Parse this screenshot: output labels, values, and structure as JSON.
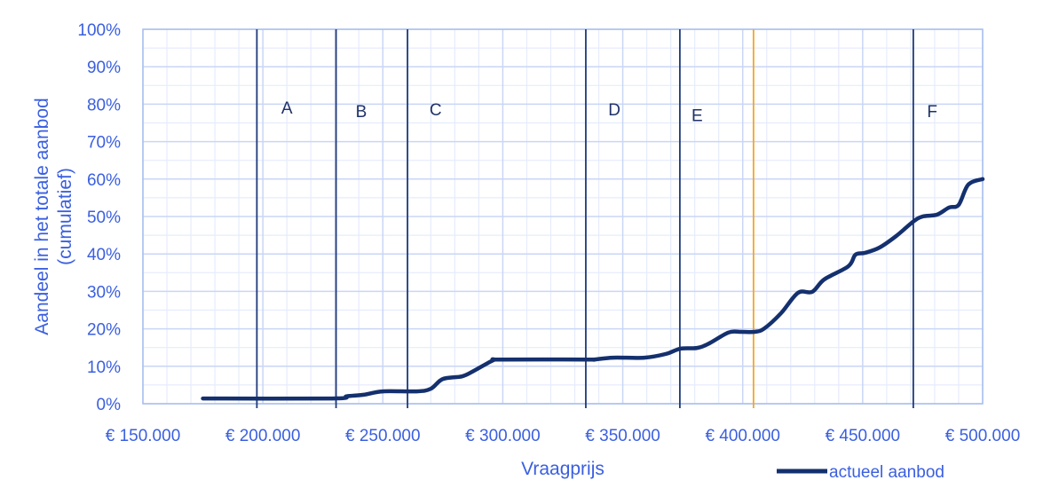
{
  "chart_data": {
    "type": "line",
    "title": "",
    "xlabel": "Vraagprijs",
    "ylabel": "Aandeel in het totale aanbod (cumulatief)",
    "ylabel_lines": [
      "Aandeel in het totale aanbod",
      "(cumulatief)"
    ],
    "xlim": [
      150000,
      500000
    ],
    "ylim": [
      0,
      100
    ],
    "x_ticks": [
      150000,
      200000,
      250000,
      300000,
      350000,
      400000,
      450000,
      500000
    ],
    "x_tick_labels": [
      "€ 150.000",
      "€ 200.000",
      "€ 250.000",
      "€ 300.000",
      "€ 350.000",
      "€ 400.000",
      "€ 450.000",
      "€ 500.000"
    ],
    "y_ticks": [
      0,
      10,
      20,
      30,
      40,
      50,
      60,
      70,
      80,
      90,
      100
    ],
    "y_tick_labels": [
      "0%",
      "10%",
      "20%",
      "30%",
      "40%",
      "50%",
      "60%",
      "70%",
      "80%",
      "90%",
      "100%"
    ],
    "grid": {
      "major_x_step": 50000,
      "minor_x_step": 10000,
      "major_y_step": 10,
      "minor_y_step": 5
    },
    "legend": {
      "position": "bottom-right",
      "entries": [
        "actueel aanbod"
      ]
    },
    "series": [
      {
        "name": "actueel aanbod",
        "color": "#14306e",
        "x": [
          175000,
          229000,
          235000,
          242000,
          250000,
          264000,
          270000,
          275000,
          283000,
          288000,
          296000,
          299000,
          335000,
          338000,
          346000,
          359000,
          368000,
          374000,
          381000,
          386000,
          394000,
          399000,
          405000,
          409000,
          416000,
          423000,
          429000,
          434000,
          444000,
          447000,
          451000,
          457000,
          464000,
          471000,
          475000,
          481000,
          486000,
          490000,
          494000,
          500000
        ],
        "values": [
          1.4,
          1.4,
          2.0,
          2.4,
          3.3,
          3.3,
          4.0,
          6.6,
          7.3,
          8.8,
          11.6,
          11.8,
          11.8,
          11.8,
          12.3,
          12.3,
          13.3,
          14.7,
          14.9,
          16.1,
          19.0,
          19.2,
          19.2,
          20.1,
          24.2,
          29.6,
          29.9,
          33.2,
          36.7,
          39.8,
          40.3,
          41.7,
          44.8,
          48.6,
          50.0,
          50.5,
          52.4,
          53.1,
          58.5,
          60.0
        ]
      }
    ],
    "annotations": {
      "vertical_lines": [
        {
          "x": 197500,
          "color": "#1f3a7a"
        },
        {
          "x": 230500,
          "color": "#1f3a7a"
        },
        {
          "x": 260300,
          "color": "#1f3a7a"
        },
        {
          "x": 334600,
          "color": "#1f3a7a"
        },
        {
          "x": 373800,
          "color": "#1f3a7a"
        },
        {
          "x": 404500,
          "color": "#f5a623"
        },
        {
          "x": 471100,
          "color": "#1f3a7a"
        }
      ],
      "zone_labels": [
        {
          "text": "A",
          "x": 210000,
          "y": 77.5
        },
        {
          "text": "B",
          "x": 241000,
          "y": 76.5
        },
        {
          "text": "C",
          "x": 272000,
          "y": 77.0
        },
        {
          "text": "D",
          "x": 346500,
          "y": 77.0
        },
        {
          "text": "E",
          "x": 381000,
          "y": 75.5
        },
        {
          "text": "F",
          "x": 479000,
          "y": 76.5
        }
      ]
    }
  },
  "colors": {
    "axis_text": "#3a5fe0",
    "grid_major": "#c9d6f5",
    "grid_minor": "#e6ecfb",
    "plot_border": "#a9bff0",
    "line": "#14306e",
    "zone_line": "#1f3a7a",
    "highlight_line": "#f5a623"
  }
}
